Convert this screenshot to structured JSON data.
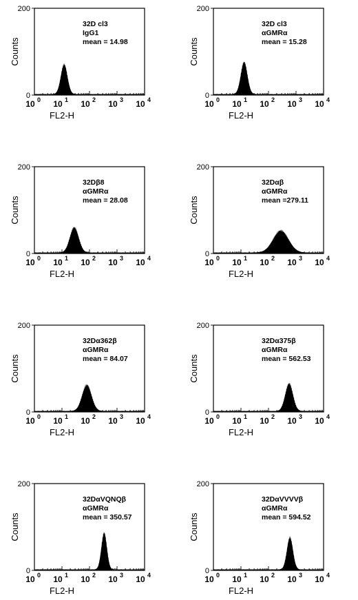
{
  "chart_data": [
    {
      "type": "histogram",
      "annotations": [
        "32D cl3",
        "IgG1",
        "mean = 14.98"
      ],
      "xlabel": "FL2-H",
      "ylabel": "Counts",
      "xscale": "log",
      "xlim": [
        1,
        10000
      ],
      "ylim": [
        0,
        200
      ],
      "yticks": [
        "0",
        "200"
      ],
      "xticks": [
        "0",
        "1",
        "2",
        "3",
        "4"
      ],
      "peak": {
        "center": 12,
        "sd_decades": 0.12,
        "height": 65
      }
    },
    {
      "type": "histogram",
      "annotations": [
        "32D cl3",
        "αGMRα",
        "mean = 15.28"
      ],
      "xlabel": "FL2-H",
      "ylabel": "Counts",
      "xscale": "log",
      "xlim": [
        1,
        10000
      ],
      "ylim": [
        0,
        200
      ],
      "yticks": [
        "0",
        "200"
      ],
      "xticks": [
        "0",
        "1",
        "2",
        "3",
        "4"
      ],
      "peak": {
        "center": 13,
        "sd_decades": 0.12,
        "height": 70
      }
    },
    {
      "type": "histogram",
      "annotations": [
        "32Dβ8",
        "αGMRα",
        "mean = 28.08"
      ],
      "xlabel": "FL2-H",
      "ylabel": "Counts",
      "xscale": "log",
      "xlim": [
        1,
        10000
      ],
      "ylim": [
        0,
        200
      ],
      "yticks": [
        "0",
        "200"
      ],
      "xticks": [
        "0",
        "1",
        "2",
        "3",
        "4"
      ],
      "peak": {
        "center": 28,
        "sd_decades": 0.16,
        "height": 55
      }
    },
    {
      "type": "histogram",
      "annotations": [
        "32Dαβ",
        "αGMRα",
        "mean =279.11"
      ],
      "xlabel": "FL2-H",
      "ylabel": "Counts",
      "xscale": "log",
      "xlim": [
        1,
        10000
      ],
      "ylim": [
        0,
        200
      ],
      "yticks": [
        "0",
        "200"
      ],
      "xticks": [
        "0",
        "1",
        "2",
        "3",
        "4"
      ],
      "peak": {
        "center": 280,
        "sd_decades": 0.28,
        "height": 48
      }
    },
    {
      "type": "histogram",
      "annotations": [
        "32Dα362β",
        "αGMRα",
        "mean = 84.07"
      ],
      "xlabel": "FL2-H",
      "ylabel": "Counts",
      "xscale": "log",
      "xlim": [
        1,
        10000
      ],
      "ylim": [
        0,
        200
      ],
      "yticks": [
        "0",
        "200"
      ],
      "xticks": [
        "0",
        "1",
        "2",
        "3",
        "4"
      ],
      "peak": {
        "center": 80,
        "sd_decades": 0.17,
        "height": 57
      }
    },
    {
      "type": "histogram",
      "annotations": [
        "32Dα375β",
        "αGMRα",
        "mean = 562.53"
      ],
      "xlabel": "FL2-H",
      "ylabel": "Counts",
      "xscale": "log",
      "xlim": [
        1,
        10000
      ],
      "ylim": [
        0,
        200
      ],
      "yticks": [
        "0",
        "200"
      ],
      "xticks": [
        "0",
        "1",
        "2",
        "3",
        "4"
      ],
      "peak": {
        "center": 560,
        "sd_decades": 0.14,
        "height": 60
      }
    },
    {
      "type": "histogram",
      "annotations": [
        "32DαVQNQβ",
        "αGMRα",
        "mean = 350.57"
      ],
      "xlabel": "FL2-H",
      "ylabel": "Counts",
      "xscale": "log",
      "xlim": [
        1,
        10000
      ],
      "ylim": [
        0,
        200
      ],
      "yticks": [
        "0",
        "200"
      ],
      "xticks": [
        "0",
        "1",
        "2",
        "3",
        "4"
      ],
      "peak": {
        "center": 340,
        "sd_decades": 0.1,
        "height": 80
      }
    },
    {
      "type": "histogram",
      "annotations": [
        "32DαVVVVβ",
        "αGMRα",
        "mean = 594.52"
      ],
      "xlabel": "FL2-H",
      "ylabel": "Counts",
      "xscale": "log",
      "xlim": [
        1,
        10000
      ],
      "ylim": [
        0,
        200
      ],
      "yticks": [
        "0",
        "200"
      ],
      "xticks": [
        "0",
        "1",
        "2",
        "3",
        "4"
      ],
      "peak": {
        "center": 600,
        "sd_decades": 0.11,
        "height": 70
      }
    }
  ]
}
